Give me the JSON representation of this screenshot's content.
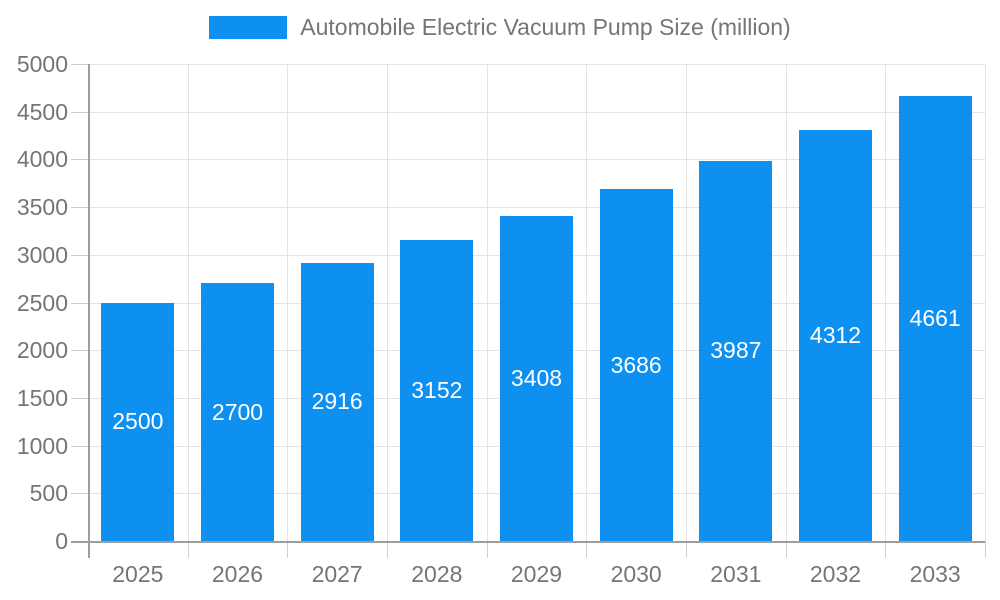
{
  "chart_data": {
    "type": "bar",
    "title": "Automobile Electric Vacuum Pump Size (million)",
    "categories": [
      "2025",
      "2026",
      "2027",
      "2028",
      "2029",
      "2030",
      "2031",
      "2032",
      "2033"
    ],
    "series": [
      {
        "name": "Automobile Electric Vacuum Pump Size (million)",
        "values": [
          2500,
          2700,
          2916,
          3152,
          3408,
          3686,
          3987,
          4312,
          4661
        ]
      }
    ],
    "xlabel": "",
    "ylabel": "",
    "ylim": [
      0,
      5000
    ],
    "ytick_step": 500,
    "grid": true,
    "legend_position": "top",
    "colors": {
      "bar": "#0e90f0",
      "value_label": "#ffffff",
      "axis": "#9e9e9e",
      "gridline": "#e4e4e4",
      "tick": "#cfcfcf",
      "text": "#757575"
    }
  }
}
